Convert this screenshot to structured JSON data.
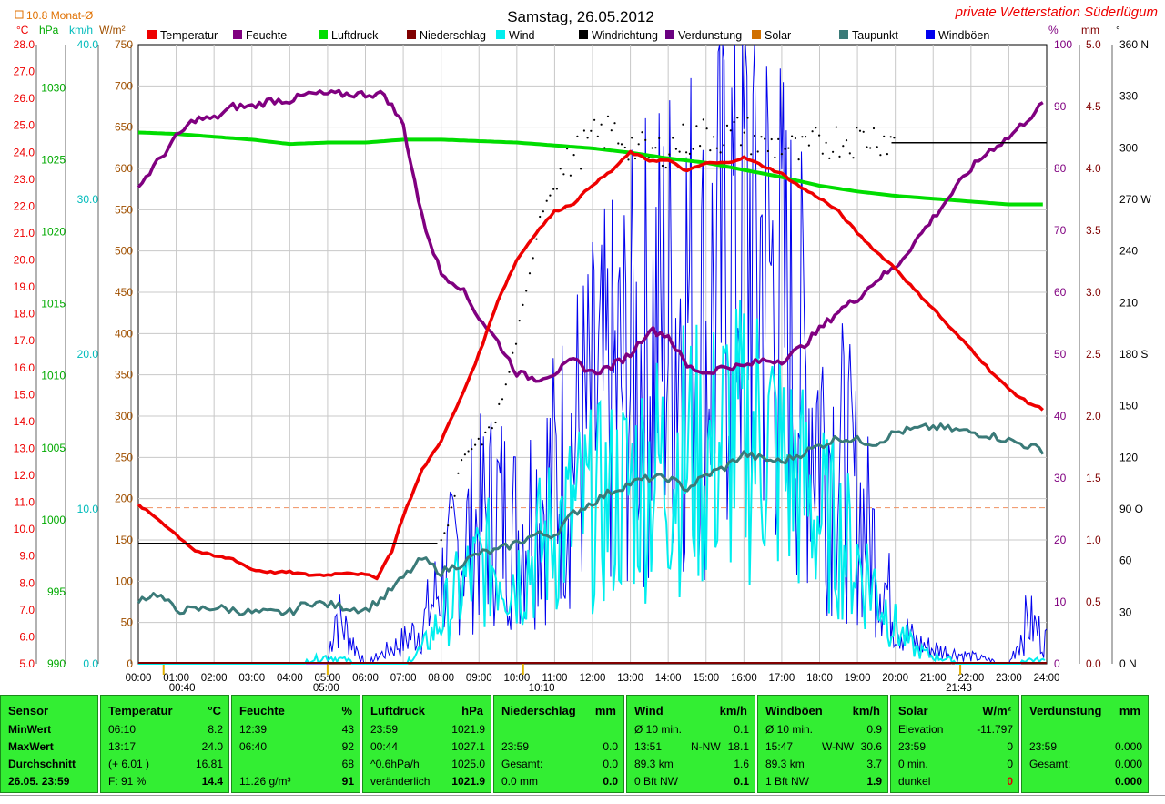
{
  "title": "Samstag, 26.05.2012",
  "station": "private Wetterstation Süderlügum",
  "month_avg_label": "10.8 Monat-Ø",
  "axis_units": {
    "temp": "°C",
    "pressure": "hPa",
    "wind": "km/h",
    "solar": "W/m²",
    "humidity": "%",
    "rain": "mm",
    "direction": "°"
  },
  "legend": [
    {
      "label": "Temperatur",
      "color": "#ee0000"
    },
    {
      "label": "Feuchte",
      "color": "#800080"
    },
    {
      "label": "Luftdruck",
      "color": "#00dd00"
    },
    {
      "label": "Niederschlag",
      "color": "#800000"
    },
    {
      "label": "Wind",
      "color": "#00eeee"
    },
    {
      "label": "Windrichtung",
      "color": "#000000"
    },
    {
      "label": "Verdunstung",
      "color": "#6a0080"
    },
    {
      "label": "Solar",
      "color": "#d07000"
    },
    {
      "label": "Taupunkt",
      "color": "#3a7a78"
    },
    {
      "label": "Windböen",
      "color": "#0000ee"
    }
  ],
  "markers": [
    {
      "time": "00:40"
    },
    {
      "time": "05:00"
    },
    {
      "time": "10:10"
    },
    {
      "time": "21:43"
    }
  ],
  "chart_data": {
    "type": "line",
    "x_ticks": [
      "00:00",
      "01:00",
      "02:00",
      "03:00",
      "04:00",
      "05:00",
      "06:00",
      "07:00",
      "08:00",
      "09:00",
      "10:00",
      "11:00",
      "12:00",
      "13:00",
      "14:00",
      "15:00",
      "16:00",
      "17:00",
      "18:00",
      "19:00",
      "20:00",
      "21:00",
      "22:00",
      "23:00",
      "24:00"
    ],
    "axes": {
      "temp": {
        "ylim": [
          5.0,
          28.0
        ],
        "ticks": [
          "28.0",
          "27.0",
          "26.0",
          "25.0",
          "24.0",
          "23.0",
          "22.0",
          "21.0",
          "20.0",
          "19.0",
          "18.0",
          "17.0",
          "16.0",
          "15.0",
          "14.0",
          "13.0",
          "12.0",
          "11.0",
          "10.0",
          "9.0",
          "8.0",
          "7.0",
          "6.0",
          "5.0"
        ]
      },
      "pressure": {
        "ylim": [
          990,
          1033
        ],
        "ticks": [
          "1030",
          "1025",
          "1020",
          "1015",
          "1010",
          "1005",
          "1000",
          "995",
          "990"
        ]
      },
      "wind": {
        "ylim": [
          0.0,
          40.0
        ],
        "ticks": [
          "40.0",
          "30.0",
          "20.0",
          "10.0",
          "0.0"
        ]
      },
      "solar": {
        "ylim": [
          0,
          750
        ],
        "ticks": [
          "750",
          "700",
          "650",
          "600",
          "550",
          "500",
          "450",
          "400",
          "350",
          "300",
          "250",
          "200",
          "150",
          "100",
          "50",
          "0"
        ]
      },
      "humidity": {
        "ylim": [
          0,
          100
        ],
        "ticks": [
          "100",
          "90",
          "80",
          "70",
          "60",
          "50",
          "40",
          "30",
          "20",
          "10",
          "0"
        ]
      },
      "rain": {
        "ylim": [
          0.0,
          5.0
        ],
        "ticks": [
          "5.0",
          "4.5",
          "4.0",
          "3.5",
          "3.0",
          "2.5",
          "2.0",
          "1.5",
          "1.0",
          "0.5",
          "0.0"
        ]
      },
      "direction": {
        "ylim": [
          0,
          360
        ],
        "ticks": [
          "360 N",
          "330",
          "300",
          "270 W",
          "240",
          "210",
          "180 S",
          "150",
          "120",
          "90 O",
          "60",
          "30",
          "0 N"
        ]
      }
    },
    "series": [
      {
        "name": "Temperatur",
        "axis": "temp",
        "color": "#ee0000",
        "x": [
          0,
          0.5,
          1,
          1.5,
          2,
          2.5,
          3,
          3.5,
          4,
          4.5,
          5,
          5.5,
          6,
          6.3,
          6.7,
          7,
          7.5,
          8,
          8.5,
          9,
          9.5,
          10,
          10.5,
          11,
          11.5,
          12,
          12.5,
          13,
          13.5,
          14,
          14.5,
          15,
          15.5,
          16,
          16.5,
          17,
          17.5,
          18,
          18.5,
          19,
          19.5,
          20,
          20.5,
          21,
          21.5,
          22,
          22.5,
          23,
          23.5,
          24
        ],
        "y": [
          10.9,
          10.4,
          9.8,
          9.2,
          9.0,
          8.9,
          8.5,
          8.4,
          8.4,
          8.3,
          8.3,
          8.4,
          8.3,
          8.2,
          9.2,
          10.5,
          12.2,
          13.3,
          14.8,
          16.5,
          18.5,
          20.0,
          21.0,
          21.8,
          22.1,
          22.8,
          23.3,
          24.0,
          23.7,
          23.7,
          23.3,
          23.6,
          23.6,
          23.8,
          23.5,
          23.2,
          22.7,
          22.3,
          21.8,
          21.0,
          20.3,
          19.7,
          18.9,
          18.2,
          17.4,
          16.7,
          15.9,
          15.2,
          14.7,
          14.4
        ]
      },
      {
        "name": "Feuchte",
        "axis": "humidity",
        "color": "#800080",
        "x": [
          0,
          0.5,
          1,
          1.5,
          2,
          2.5,
          3,
          3.5,
          4,
          4.5,
          5,
          5.5,
          6,
          6.5,
          7,
          7.5,
          8,
          8.5,
          9,
          9.5,
          10,
          10.5,
          11,
          11.5,
          12,
          12.5,
          13,
          13.5,
          14,
          14.5,
          15,
          15.5,
          16,
          16.5,
          17,
          17.5,
          18,
          18.5,
          19,
          19.5,
          20,
          20.5,
          21,
          21.5,
          22,
          22.5,
          23,
          23.5,
          24
        ],
        "y": [
          77,
          81,
          85,
          88,
          88,
          90,
          90,
          91,
          91,
          92,
          92,
          92,
          92,
          92,
          87,
          72,
          63,
          61,
          56,
          52,
          47,
          46,
          47,
          49,
          47,
          48,
          50,
          54,
          53,
          48,
          47,
          48,
          48,
          49,
          49,
          51,
          54,
          57,
          59,
          62,
          64,
          68,
          72,
          76,
          80,
          83,
          85,
          88,
          91
        ]
      },
      {
        "name": "Luftdruck",
        "axis": "pressure",
        "color": "#00dd00",
        "x": [
          0,
          1,
          2,
          3,
          4,
          5,
          6,
          7,
          8,
          9,
          10,
          11,
          12,
          13,
          14,
          15,
          16,
          17,
          18,
          19,
          20,
          21,
          22,
          23,
          24
        ],
        "y": [
          1026.9,
          1026.8,
          1026.6,
          1026.4,
          1026.1,
          1026.2,
          1026.2,
          1026.4,
          1026.4,
          1026.3,
          1026.2,
          1026.0,
          1025.8,
          1025.5,
          1025.1,
          1024.8,
          1024.3,
          1023.8,
          1023.2,
          1022.8,
          1022.5,
          1022.3,
          1022.1,
          1021.9,
          1021.9
        ]
      },
      {
        "name": "Taupunkt",
        "axis": "temp",
        "color": "#3a7a78",
        "x": [
          0,
          0.5,
          1,
          1.5,
          2,
          2.5,
          3,
          3.5,
          4,
          4.5,
          5,
          5.5,
          6,
          6.5,
          7,
          7.5,
          8,
          8.5,
          9,
          9.5,
          10,
          10.5,
          11,
          11.5,
          12,
          12.5,
          13,
          13.5,
          14,
          14.5,
          15,
          15.5,
          16,
          16.5,
          17,
          17.5,
          18,
          18.5,
          19,
          19.5,
          20,
          20.5,
          21,
          21.5,
          22,
          22.5,
          23,
          23.5,
          24
        ],
        "y": [
          7.4,
          7.6,
          7.0,
          7.0,
          7.1,
          7.0,
          6.9,
          6.9,
          6.9,
          7.3,
          7.2,
          7.1,
          7.0,
          7.5,
          8.2,
          8.9,
          8.4,
          8.7,
          9.1,
          9.2,
          9.5,
          9.8,
          9.8,
          10.6,
          11.0,
          11.4,
          11.7,
          11.9,
          11.9,
          11.5,
          12.0,
          12.3,
          12.8,
          12.6,
          12.5,
          12.8,
          13.1,
          13.4,
          13.3,
          13.2,
          13.6,
          13.7,
          13.8,
          13.7,
          13.6,
          13.5,
          13.3,
          13.1,
          12.9
        ]
      },
      {
        "name": "Windrichtung",
        "axis": "direction",
        "color": "#000000",
        "x": [
          0,
          1,
          2,
          3,
          4,
          5,
          6,
          7,
          7.9,
          8.2,
          8.5,
          8.8,
          9.1,
          9.4,
          9.7,
          10,
          10.3,
          10.6,
          11,
          11.5,
          12,
          12.5,
          13,
          13.5,
          14,
          14.5,
          15,
          15.5,
          16,
          16.5,
          17,
          17.5,
          18,
          18.5,
          19,
          19.5,
          20,
          21,
          22,
          23,
          24
        ],
        "y": [
          70,
          70,
          70,
          70,
          70,
          70,
          70,
          70,
          70,
          80,
          115,
          125,
          130,
          140,
          160,
          190,
          220,
          260,
          280,
          295,
          305,
          310,
          302,
          296,
          300,
          305,
          308,
          306,
          310,
          300,
          302,
          296,
          303,
          305,
          305,
          307,
          303,
          303,
          303,
          303,
          303
        ]
      },
      {
        "name": "Wind",
        "axis": "wind",
        "color": "#00eeee",
        "x": [
          0,
          1,
          2,
          3,
          4,
          5,
          6,
          7,
          7.5,
          8,
          8.5,
          9,
          9.5,
          10,
          10.5,
          11,
          11.5,
          12,
          12.5,
          13,
          13.5,
          14,
          14.5,
          15,
          15.5,
          16,
          16.5,
          17,
          17.5,
          18,
          18.5,
          19,
          19.5,
          20,
          20.5,
          21,
          22,
          23,
          23.5,
          24
        ],
        "y": [
          0,
          0,
          0,
          0,
          0,
          0.5,
          0,
          0,
          1.0,
          3.0,
          5.0,
          6.5,
          7.0,
          6.0,
          7.5,
          9.0,
          10.0,
          10.5,
          11.0,
          12.0,
          13.0,
          13.5,
          14.5,
          13.5,
          15.5,
          15.0,
          16.0,
          13.5,
          12.0,
          10.0,
          9.0,
          7.0,
          5.0,
          2.5,
          1.0,
          0.5,
          0,
          0,
          0.3,
          0.2
        ]
      },
      {
        "name": "Windböen",
        "axis": "wind",
        "color": "#0000ee",
        "x": [
          0,
          1,
          2,
          3,
          4,
          5,
          5.2,
          6,
          7,
          7.5,
          8,
          8.5,
          9,
          9.5,
          10,
          10.5,
          11,
          11.5,
          12,
          12.5,
          13,
          13.5,
          14,
          14.5,
          15,
          15.5,
          16,
          16.5,
          17,
          17.5,
          18,
          18.5,
          19,
          19.5,
          20,
          20.5,
          21,
          22,
          23,
          23.5,
          24
        ],
        "y": [
          0,
          0,
          0,
          0,
          0,
          0,
          3.5,
          0,
          1.5,
          2.5,
          5.5,
          8.0,
          9.5,
          10.5,
          9.0,
          11.0,
          12.5,
          15.0,
          16.5,
          18.0,
          19.5,
          22.0,
          23.5,
          25.0,
          22.0,
          28.0,
          30.6,
          27.5,
          24.0,
          20.0,
          16.5,
          14.0,
          11.0,
          7.5,
          3.0,
          1.5,
          1.0,
          0.5,
          0,
          3.0,
          1.5
        ]
      },
      {
        "name": "Niederschlag",
        "axis": "rain",
        "color": "#800000",
        "x": [
          0,
          24
        ],
        "y": [
          0.0,
          0.0
        ]
      }
    ],
    "solar_reference_level": 189
  },
  "panels": [
    {
      "title": "Sensor",
      "unit": "",
      "rows": [
        [
          "MinWert",
          "",
          ""
        ],
        [
          "MaxWert",
          "",
          ""
        ],
        [
          "Durchschnitt",
          "",
          ""
        ],
        [
          "26.05. 23:59",
          "",
          ""
        ]
      ]
    },
    {
      "title": "Temperatur",
      "unit": "°C",
      "rows": [
        [
          "06:10",
          "",
          "8.2"
        ],
        [
          "13:17",
          "",
          "24.0"
        ],
        [
          "(+ 6.01 )",
          "",
          "16.81"
        ],
        [
          "F: 91 %",
          "",
          "14.4"
        ]
      ]
    },
    {
      "title": "Feuchte",
      "unit": "%",
      "rows": [
        [
          "12:39",
          "",
          "43"
        ],
        [
          "06:40",
          "",
          "92"
        ],
        [
          "",
          "",
          "68"
        ],
        [
          "11.26 g/m³",
          "",
          "91"
        ]
      ]
    },
    {
      "title": "Luftdruck",
      "unit": "hPa",
      "rows": [
        [
          "23:59",
          "",
          "1021.9"
        ],
        [
          "00:44",
          "",
          "1027.1"
        ],
        [
          "^0.6hPa/h",
          "",
          "1025.0"
        ],
        [
          "veränderlich",
          "",
          "1021.9"
        ]
      ]
    },
    {
      "title": "Niederschlag",
      "unit": "mm",
      "rows": [
        [
          "",
          "",
          ""
        ],
        [
          "23:59",
          "",
          "0.0"
        ],
        [
          "Gesamt:",
          "",
          "0.0"
        ],
        [
          "0.0 mm",
          "",
          "0.0"
        ]
      ]
    },
    {
      "title": "Wind",
      "unit": "km/h",
      "rows": [
        [
          "Ø 10 min.",
          "",
          "0.1"
        ],
        [
          "13:51",
          "N-NW",
          "18.1"
        ],
        [
          "89.3 km",
          "",
          "1.6"
        ],
        [
          "0 Bft NW",
          "",
          "0.1"
        ]
      ]
    },
    {
      "title": "Windböen",
      "unit": "km/h",
      "rows": [
        [
          "Ø 10 min.",
          "",
          "0.9"
        ],
        [
          "15:47",
          "W-NW",
          "30.6"
        ],
        [
          "89.3 km",
          "",
          "3.7"
        ],
        [
          "1 Bft NW",
          "",
          "1.9"
        ]
      ]
    },
    {
      "title": "Solar",
      "unit": "W/m²",
      "rows": [
        [
          "Elevation",
          "",
          "-11.797"
        ],
        [
          "23:59",
          "",
          "0"
        ],
        [
          "0 min.",
          "",
          "0"
        ],
        [
          "dunkel",
          "",
          "0"
        ]
      ]
    },
    {
      "title": "Verdunstung",
      "unit": "mm",
      "rows": [
        [
          "",
          "",
          ""
        ],
        [
          "23:59",
          "",
          "0.000"
        ],
        [
          "Gesamt:",
          "",
          "0.000"
        ],
        [
          "",
          "",
          "0.000"
        ]
      ]
    }
  ]
}
